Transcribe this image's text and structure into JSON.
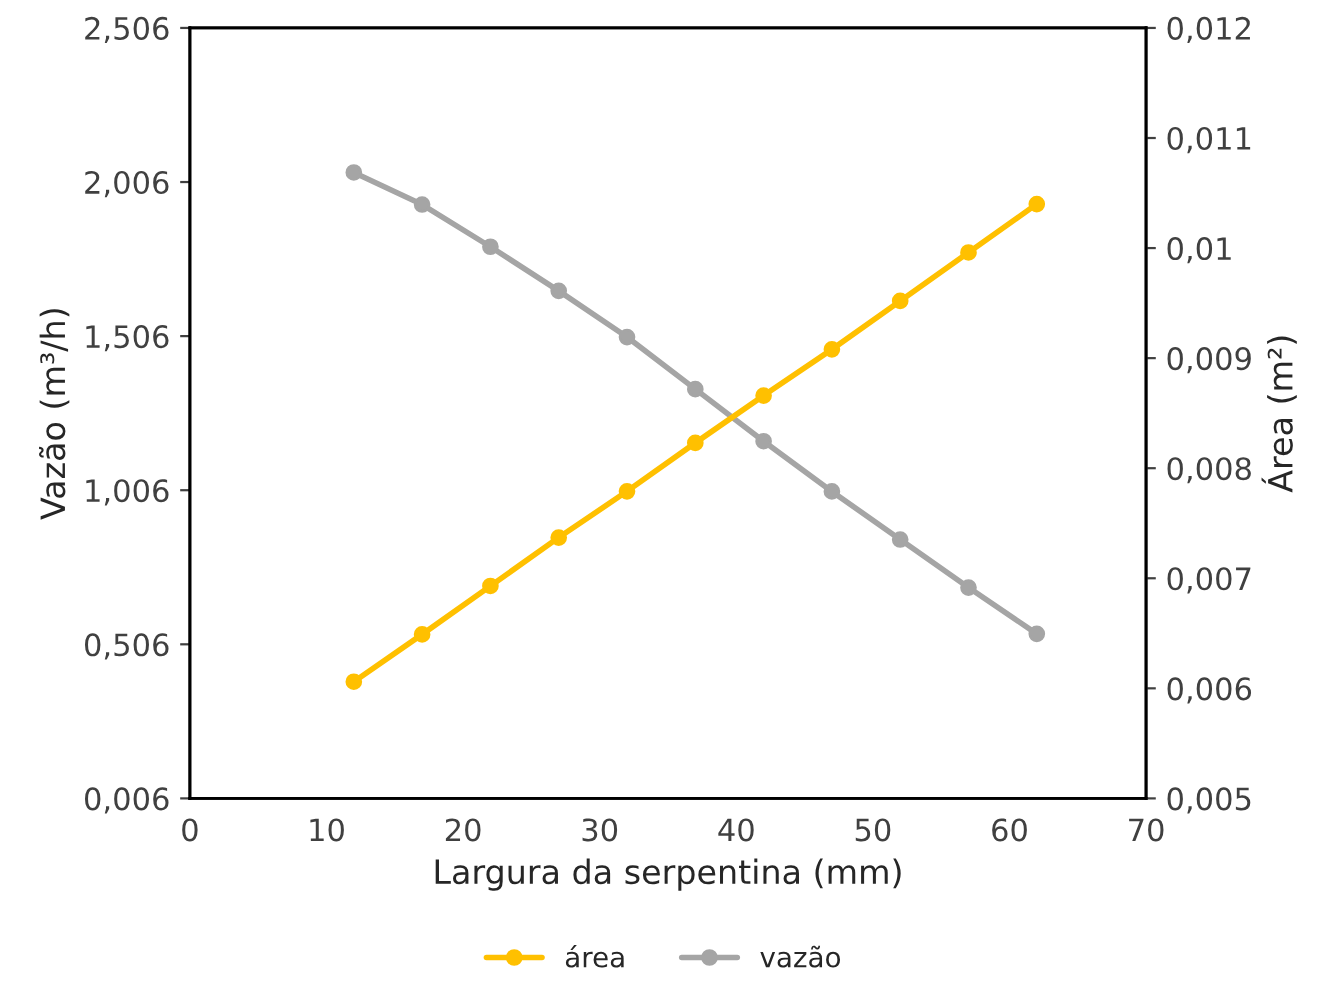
{
  "chart_data": {
    "type": "line",
    "xlabel": "Largura da serpentina (mm)",
    "ylabel": "Vazão (m³/h)",
    "y2label": "Área (m²)",
    "xlim": [
      0,
      70
    ],
    "xticks": [
      0,
      10,
      20,
      30,
      40,
      50,
      60,
      70
    ],
    "ylim": [
      0.006,
      2.506
    ],
    "yticks": [
      {
        "value": 0.006,
        "label": "0,006"
      },
      {
        "value": 0.506,
        "label": "0,506"
      },
      {
        "value": 1.006,
        "label": "1,006"
      },
      {
        "value": 1.506,
        "label": "1,506"
      },
      {
        "value": 2.006,
        "label": "2,006"
      },
      {
        "value": 2.506,
        "label": "2,506"
      }
    ],
    "y2lim": [
      0.005,
      0.012
    ],
    "y2ticks": [
      {
        "value": 0.005,
        "label": "0,005"
      },
      {
        "value": 0.006,
        "label": "0,006"
      },
      {
        "value": 0.007,
        "label": "0,007"
      },
      {
        "value": 0.008,
        "label": "0,008"
      },
      {
        "value": 0.009,
        "label": "0,009"
      },
      {
        "value": 0.01,
        "label": "0,01"
      },
      {
        "value": 0.011,
        "label": "0,011"
      },
      {
        "value": 0.012,
        "label": "0,012"
      }
    ],
    "x": [
      12,
      17,
      22,
      27,
      32,
      37,
      42,
      47,
      52,
      57,
      62
    ],
    "marker": "circle",
    "grid": false,
    "legend": "bottom",
    "series": [
      {
        "name": "área",
        "color": "#ffc000",
        "axis": "y2",
        "values": [
          0.00606,
          0.00649,
          0.00693,
          0.00737,
          0.00779,
          0.00823,
          0.00866,
          0.00908,
          0.00952,
          0.00996,
          0.0104
        ]
      },
      {
        "name": "vazão",
        "color": "#a5a5a5",
        "values": [
          2.037,
          1.933,
          1.796,
          1.653,
          1.503,
          1.334,
          1.165,
          1.002,
          0.846,
          0.69,
          0.54
        ]
      }
    ]
  }
}
